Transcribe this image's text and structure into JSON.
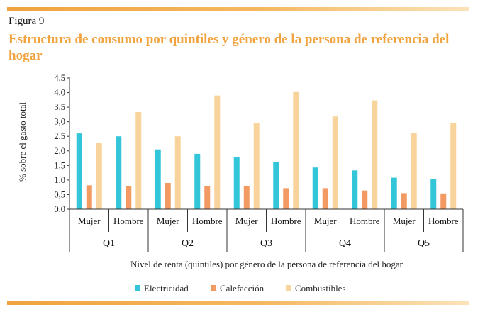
{
  "figure": {
    "label": "Figura 9",
    "title": "Estructura de consumo por quintiles y género de la persona de referencia del hogar"
  },
  "colors": {
    "accent": "#f0a33e",
    "Electricidad": "#33c6d8",
    "Calefacción": "#f39a62",
    "Combustibles": "#f8d39b"
  },
  "chart_data": {
    "type": "bar",
    "title": "",
    "ylabel": "% sobre el gasto total",
    "xlabel": "Nivel de renta (quintiles) por género de la persona de referencia del hogar",
    "ylim": [
      0,
      4.5
    ],
    "yticks": [
      "0,0",
      "0,5",
      "1,0",
      "1,5",
      "2,0",
      "2,5",
      "3,0",
      "3,5",
      "4,0",
      "4,5"
    ],
    "groups": [
      "Q1",
      "Q2",
      "Q3",
      "Q4",
      "Q5"
    ],
    "categories": [
      "Mujer",
      "Hombre",
      "Mujer",
      "Hombre",
      "Mujer",
      "Hombre",
      "Mujer",
      "Hombre",
      "Mujer",
      "Hombre"
    ],
    "legend_position": "bottom",
    "grid": false,
    "series": [
      {
        "name": "Electricidad",
        "values": [
          2.6,
          2.5,
          2.05,
          1.9,
          1.8,
          1.63,
          1.43,
          1.33,
          1.08,
          1.03
        ]
      },
      {
        "name": "Calefacción",
        "values": [
          0.82,
          0.78,
          0.9,
          0.8,
          0.78,
          0.72,
          0.72,
          0.64,
          0.55,
          0.54
        ]
      },
      {
        "name": "Combustibles",
        "values": [
          2.27,
          3.33,
          2.5,
          3.9,
          2.95,
          4.02,
          3.18,
          3.73,
          2.62,
          2.95
        ]
      }
    ]
  }
}
